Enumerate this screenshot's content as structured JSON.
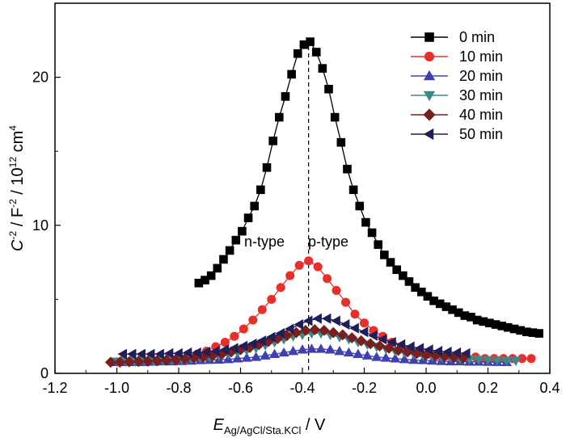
{
  "chart_data": {
    "type": "line",
    "xlabel": {
      "main": "E",
      "sub": "Ag/AgCl/Sta.KCl",
      "unit": " / V"
    },
    "ylabel": {
      "c": "C",
      "exp1": "-2",
      "mid": " / F",
      "exp2": "-2",
      "mid2": " / 10",
      "exp3": "12",
      "unit": " cm",
      "exp4": "4"
    },
    "xlim": [
      -1.2,
      0.4
    ],
    "ylim": [
      0,
      25
    ],
    "xticks": [
      "-1.2",
      "-1.0",
      "-0.8",
      "-0.6",
      "-0.4",
      "-0.2",
      "0.0",
      "0.2",
      "0.4"
    ],
    "yticks": [
      "0",
      "10",
      "20"
    ],
    "ytick_values": [
      0,
      10,
      20
    ],
    "annotations": {
      "n_type": "n-type",
      "p_type": "p-type",
      "divider_x": -0.38
    },
    "series": [
      {
        "name": "0 min",
        "marker": "square",
        "color": "#000000",
        "x": [
          -0.735,
          -0.715,
          -0.695,
          -0.675,
          -0.655,
          -0.635,
          -0.615,
          -0.595,
          -0.575,
          -0.555,
          -0.535,
          -0.515,
          -0.495,
          -0.475,
          -0.455,
          -0.435,
          -0.415,
          -0.395,
          -0.375,
          -0.355,
          -0.335,
          -0.315,
          -0.295,
          -0.275,
          -0.255,
          -0.235,
          -0.215,
          -0.195,
          -0.175,
          -0.155,
          -0.135,
          -0.115,
          -0.095,
          -0.075,
          -0.055,
          -0.035,
          -0.015,
          0.005,
          0.025,
          0.045,
          0.065,
          0.085,
          0.105,
          0.125,
          0.145,
          0.165,
          0.185,
          0.205,
          0.225,
          0.245,
          0.265,
          0.285,
          0.305,
          0.325,
          0.345,
          0.365
        ],
        "y": [
          6.1,
          6.3,
          6.6,
          7.1,
          7.7,
          8.3,
          9.0,
          9.6,
          10.5,
          11.3,
          12.4,
          13.9,
          15.7,
          17.3,
          18.7,
          20.2,
          21.6,
          22.2,
          22.4,
          21.7,
          20.6,
          19.2,
          17.3,
          15.6,
          13.8,
          12.4,
          11.3,
          10.2,
          9.5,
          8.7,
          8.0,
          7.5,
          7.0,
          6.6,
          6.2,
          5.8,
          5.5,
          5.2,
          4.9,
          4.7,
          4.5,
          4.3,
          4.1,
          3.9,
          3.8,
          3.6,
          3.5,
          3.4,
          3.3,
          3.2,
          3.1,
          3.0,
          2.9,
          2.8,
          2.75,
          2.7
        ]
      },
      {
        "name": "10 min",
        "marker": "circle",
        "color": "#e8302a",
        "x": [
          -0.98,
          -0.95,
          -0.92,
          -0.89,
          -0.86,
          -0.83,
          -0.8,
          -0.77,
          -0.74,
          -0.71,
          -0.68,
          -0.65,
          -0.62,
          -0.59,
          -0.56,
          -0.53,
          -0.5,
          -0.47,
          -0.44,
          -0.41,
          -0.38,
          -0.35,
          -0.32,
          -0.29,
          -0.26,
          -0.23,
          -0.2,
          -0.17,
          -0.14,
          -0.11,
          -0.08,
          -0.05,
          -0.02,
          0.01,
          0.04,
          0.07,
          0.1,
          0.13,
          0.16,
          0.19,
          0.22,
          0.25,
          0.28,
          0.31,
          0.34
        ],
        "y": [
          0.9,
          0.9,
          1.0,
          1.0,
          1.0,
          1.1,
          1.1,
          1.2,
          1.3,
          1.5,
          1.8,
          2.1,
          2.5,
          3.0,
          3.6,
          4.3,
          5.0,
          5.8,
          6.6,
          7.3,
          7.6,
          7.2,
          6.4,
          5.6,
          4.8,
          4.0,
          3.4,
          2.9,
          2.5,
          2.1,
          1.8,
          1.6,
          1.4,
          1.3,
          1.2,
          1.2,
          1.1,
          1.1,
          1.1,
          1.0,
          1.0,
          1.0,
          1.0,
          1.0,
          1.0
        ]
      },
      {
        "name": "20 min",
        "marker": "triangle-up",
        "color": "#4040b0",
        "x": [
          -1.0,
          -0.97,
          -0.94,
          -0.91,
          -0.88,
          -0.85,
          -0.82,
          -0.79,
          -0.76,
          -0.73,
          -0.7,
          -0.67,
          -0.64,
          -0.61,
          -0.58,
          -0.55,
          -0.52,
          -0.49,
          -0.46,
          -0.43,
          -0.4,
          -0.37,
          -0.34,
          -0.31,
          -0.28,
          -0.25,
          -0.22,
          -0.19,
          -0.16,
          -0.13,
          -0.1,
          -0.07,
          -0.04,
          -0.01,
          0.02,
          0.05,
          0.08,
          0.11,
          0.14,
          0.17,
          0.2,
          0.23,
          0.26
        ],
        "y": [
          0.75,
          0.75,
          0.75,
          0.75,
          0.78,
          0.8,
          0.8,
          0.82,
          0.85,
          0.88,
          0.9,
          0.92,
          0.95,
          1.0,
          1.05,
          1.1,
          1.2,
          1.3,
          1.4,
          1.5,
          1.6,
          1.65,
          1.65,
          1.6,
          1.5,
          1.4,
          1.3,
          1.2,
          1.1,
          1.05,
          1.0,
          0.95,
          0.9,
          0.88,
          0.85,
          0.82,
          0.8,
          0.8,
          0.78,
          0.78,
          0.77,
          0.76,
          0.75
        ]
      },
      {
        "name": "30 min",
        "marker": "triangle-down",
        "color": "#3a8a8a",
        "x": [
          -1.0,
          -0.97,
          -0.94,
          -0.91,
          -0.88,
          -0.85,
          -0.82,
          -0.79,
          -0.76,
          -0.73,
          -0.7,
          -0.67,
          -0.64,
          -0.61,
          -0.58,
          -0.55,
          -0.52,
          -0.49,
          -0.46,
          -0.43,
          -0.4,
          -0.37,
          -0.34,
          -0.31,
          -0.28,
          -0.25,
          -0.22,
          -0.19,
          -0.16,
          -0.13,
          -0.1,
          -0.07,
          -0.04,
          -0.01,
          0.02,
          0.05,
          0.08,
          0.11,
          0.14,
          0.17,
          0.2,
          0.23,
          0.26,
          0.29
        ],
        "y": [
          0.8,
          0.8,
          0.8,
          0.82,
          0.85,
          0.88,
          0.9,
          0.95,
          1.0,
          1.05,
          1.1,
          1.2,
          1.3,
          1.4,
          1.55,
          1.7,
          1.9,
          2.1,
          2.3,
          2.5,
          2.6,
          2.7,
          2.7,
          2.6,
          2.45,
          2.3,
          2.1,
          1.95,
          1.8,
          1.65,
          1.5,
          1.4,
          1.3,
          1.2,
          1.15,
          1.1,
          1.05,
          1.0,
          0.95,
          0.92,
          0.9,
          0.88,
          0.86,
          0.85
        ]
      },
      {
        "name": "40 min",
        "marker": "diamond",
        "color": "#7a1f1f",
        "x": [
          -1.02,
          -0.99,
          -0.96,
          -0.93,
          -0.9,
          -0.87,
          -0.84,
          -0.81,
          -0.78,
          -0.75,
          -0.72,
          -0.69,
          -0.66,
          -0.63,
          -0.6,
          -0.57,
          -0.54,
          -0.51,
          -0.48,
          -0.45,
          -0.42,
          -0.39,
          -0.36,
          -0.33,
          -0.3,
          -0.27,
          -0.24,
          -0.21,
          -0.18,
          -0.15,
          -0.12,
          -0.09,
          -0.06,
          -0.03,
          0.0,
          0.03,
          0.06,
          0.09,
          0.12
        ],
        "y": [
          0.75,
          0.75,
          0.78,
          0.8,
          0.82,
          0.85,
          0.88,
          0.92,
          0.98,
          1.05,
          1.1,
          1.2,
          1.3,
          1.45,
          1.6,
          1.75,
          1.95,
          2.15,
          2.35,
          2.55,
          2.75,
          2.9,
          2.95,
          2.9,
          2.75,
          2.6,
          2.4,
          2.2,
          2.0,
          1.85,
          1.7,
          1.55,
          1.45,
          1.35,
          1.25,
          1.2,
          1.15,
          1.1,
          1.05
        ]
      },
      {
        "name": "50 min",
        "marker": "triangle-left",
        "color": "#1e1e5a",
        "x": [
          -0.98,
          -0.95,
          -0.92,
          -0.89,
          -0.86,
          -0.83,
          -0.8,
          -0.77,
          -0.74,
          -0.71,
          -0.68,
          -0.65,
          -0.62,
          -0.59,
          -0.56,
          -0.53,
          -0.5,
          -0.47,
          -0.44,
          -0.41,
          -0.38,
          -0.35,
          -0.32,
          -0.29,
          -0.26,
          -0.23,
          -0.2,
          -0.17,
          -0.14,
          -0.11,
          -0.08,
          -0.05,
          -0.02,
          0.01,
          0.04,
          0.07,
          0.1,
          0.13
        ],
        "y": [
          1.3,
          1.3,
          1.3,
          1.3,
          1.3,
          1.35,
          1.35,
          1.4,
          1.4,
          1.45,
          1.5,
          1.6,
          1.7,
          1.85,
          2.0,
          2.2,
          2.45,
          2.7,
          3.0,
          3.3,
          3.55,
          3.7,
          3.7,
          3.55,
          3.3,
          3.05,
          2.8,
          2.55,
          2.3,
          2.1,
          1.95,
          1.8,
          1.7,
          1.6,
          1.5,
          1.45,
          1.4,
          1.35
        ]
      }
    ]
  }
}
